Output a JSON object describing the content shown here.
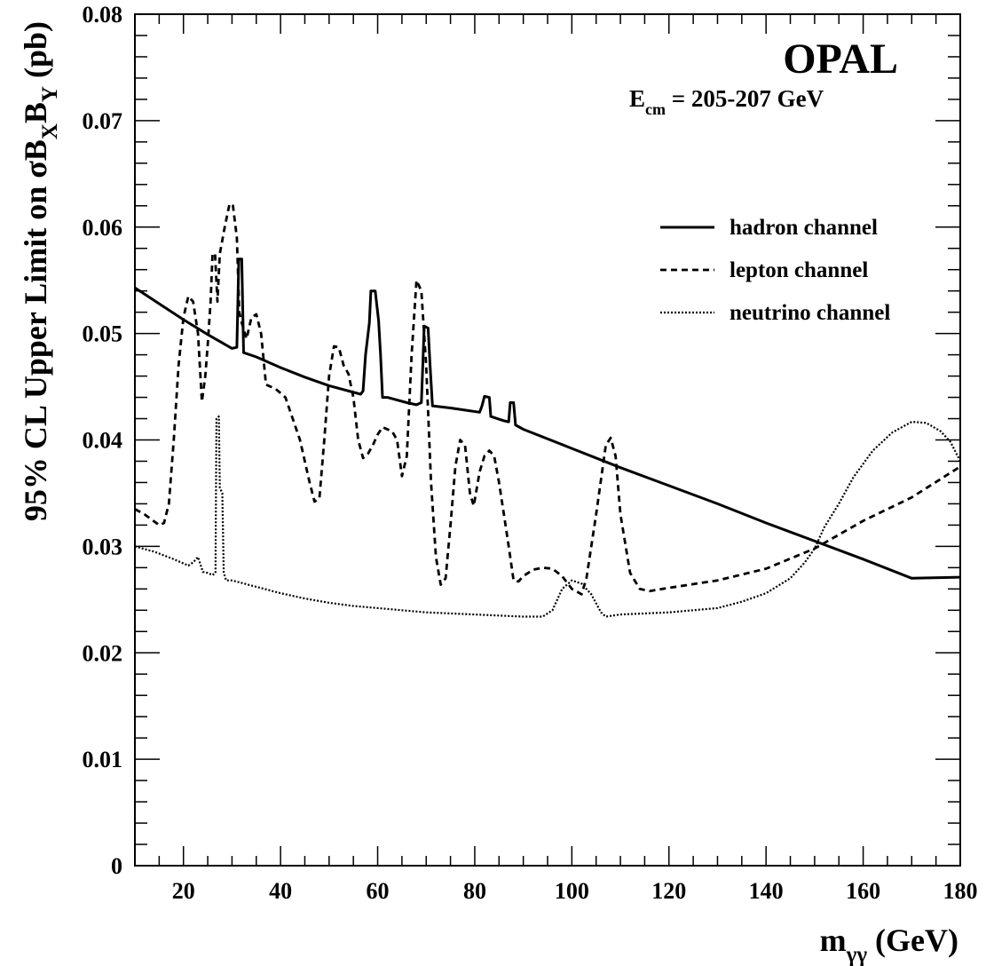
{
  "chart_data": {
    "type": "line",
    "experiment": "OPAL",
    "energy": {
      "main": "E",
      "sub": "cm",
      "rest": " = 205-207 GeV"
    },
    "xlabel": {
      "main": "m",
      "sub": "γγ",
      "rest": " (GeV)"
    },
    "ylabel": {
      "p1": "95% CL Upper Limit on σB",
      "s1": "X",
      "p2": "B",
      "s2": "Y",
      "p3": " (pb)"
    },
    "xlim": [
      10,
      180
    ],
    "ylim": [
      0,
      0.08
    ],
    "x_ticks": [
      "20",
      "40",
      "60",
      "80",
      "100",
      "120",
      "140",
      "160",
      "180"
    ],
    "y_ticks": [
      "0",
      "0.01",
      "0.02",
      "0.03",
      "0.04",
      "0.05",
      "0.06",
      "0.07",
      "0.08"
    ],
    "grid": false,
    "legend_position": "top-right",
    "series": [
      {
        "name": "hadron channel",
        "style": "solid",
        "points": [
          [
            10,
            0.0543
          ],
          [
            15,
            0.0528
          ],
          [
            20,
            0.0513
          ],
          [
            25,
            0.0499
          ],
          [
            30,
            0.0486
          ],
          [
            31,
            0.0487
          ],
          [
            31.4,
            0.057
          ],
          [
            32,
            0.057
          ],
          [
            32.4,
            0.0482
          ],
          [
            35,
            0.0478
          ],
          [
            40,
            0.0468
          ],
          [
            45,
            0.0459
          ],
          [
            50,
            0.0451
          ],
          [
            56.5,
            0.0443
          ],
          [
            57,
            0.0446
          ],
          [
            57.5,
            0.048
          ],
          [
            58.3,
            0.051
          ],
          [
            58.6,
            0.054
          ],
          [
            59.5,
            0.054
          ],
          [
            60.2,
            0.0512
          ],
          [
            60.6,
            0.048
          ],
          [
            61,
            0.044
          ],
          [
            62,
            0.044
          ],
          [
            66,
            0.0435
          ],
          [
            68,
            0.0433
          ],
          [
            69,
            0.0435
          ],
          [
            69.3,
            0.047
          ],
          [
            69.6,
            0.0507
          ],
          [
            70.4,
            0.0505
          ],
          [
            70.8,
            0.047
          ],
          [
            71.3,
            0.0432
          ],
          [
            75,
            0.043
          ],
          [
            81,
            0.0426
          ],
          [
            81.5,
            0.0432
          ],
          [
            82,
            0.0441
          ],
          [
            83,
            0.044
          ],
          [
            83.3,
            0.0422
          ],
          [
            86,
            0.0418
          ],
          [
            87,
            0.0417
          ],
          [
            87.3,
            0.0435
          ],
          [
            88,
            0.0435
          ],
          [
            88.4,
            0.0414
          ],
          [
            90,
            0.041
          ],
          [
            100,
            0.0392
          ],
          [
            110,
            0.0374
          ],
          [
            120,
            0.0357
          ],
          [
            130,
            0.034
          ],
          [
            140,
            0.0322
          ],
          [
            150,
            0.0305
          ],
          [
            160,
            0.0288
          ],
          [
            170,
            0.027
          ],
          [
            180,
            0.0271
          ]
        ]
      },
      {
        "name": "lepton channel",
        "style": "dashed",
        "points": [
          [
            10,
            0.0335
          ],
          [
            12,
            0.033
          ],
          [
            15,
            0.032
          ],
          [
            16,
            0.0322
          ],
          [
            17,
            0.034
          ],
          [
            18,
            0.04
          ],
          [
            19,
            0.047
          ],
          [
            20,
            0.0515
          ],
          [
            21,
            0.0535
          ],
          [
            22,
            0.053
          ],
          [
            23,
            0.05
          ],
          [
            23.8,
            0.0436
          ],
          [
            24.5,
            0.046
          ],
          [
            25,
            0.049
          ],
          [
            25.6,
            0.053
          ],
          [
            26,
            0.0575
          ],
          [
            26.5,
            0.0575
          ],
          [
            27,
            0.053
          ],
          [
            27.5,
            0.0575
          ],
          [
            28.5,
            0.06
          ],
          [
            29.5,
            0.0622
          ],
          [
            30.2,
            0.062
          ],
          [
            31,
            0.059
          ],
          [
            31.5,
            0.052
          ],
          [
            32,
            0.051
          ],
          [
            33,
            0.0495
          ],
          [
            34,
            0.0515
          ],
          [
            35,
            0.0518
          ],
          [
            36,
            0.05
          ],
          [
            37,
            0.0452
          ],
          [
            39,
            0.0448
          ],
          [
            41,
            0.044
          ],
          [
            42.5,
            0.042
          ],
          [
            44,
            0.04
          ],
          [
            46,
            0.036
          ],
          [
            47,
            0.0342
          ],
          [
            48,
            0.0345
          ],
          [
            49,
            0.04
          ],
          [
            50,
            0.046
          ],
          [
            51,
            0.0488
          ],
          [
            52,
            0.0487
          ],
          [
            53,
            0.047
          ],
          [
            54,
            0.0462
          ],
          [
            55,
            0.044
          ],
          [
            56,
            0.04
          ],
          [
            57,
            0.0383
          ],
          [
            58,
            0.0387
          ],
          [
            59,
            0.0395
          ],
          [
            60,
            0.0405
          ],
          [
            61,
            0.0412
          ],
          [
            63,
            0.0408
          ],
          [
            64,
            0.04
          ],
          [
            65,
            0.0366
          ],
          [
            66,
            0.0385
          ],
          [
            67,
            0.048
          ],
          [
            68,
            0.055
          ],
          [
            69,
            0.054
          ],
          [
            70,
            0.047
          ],
          [
            71,
            0.036
          ],
          [
            72,
            0.029
          ],
          [
            73,
            0.0264
          ],
          [
            74,
            0.027
          ],
          [
            75,
            0.032
          ],
          [
            76,
            0.0375
          ],
          [
            77,
            0.04
          ],
          [
            78,
            0.0395
          ],
          [
            79,
            0.035
          ],
          [
            79.8,
            0.0338
          ],
          [
            81,
            0.037
          ],
          [
            82,
            0.0385
          ],
          [
            83,
            0.039
          ],
          [
            84,
            0.0385
          ],
          [
            85,
            0.036
          ],
          [
            86,
            0.033
          ],
          [
            87,
            0.03
          ],
          [
            88,
            0.0268
          ],
          [
            89,
            0.0267
          ],
          [
            90,
            0.0272
          ],
          [
            92,
            0.0278
          ],
          [
            94,
            0.028
          ],
          [
            96,
            0.0279
          ],
          [
            98,
            0.0272
          ],
          [
            100,
            0.026
          ],
          [
            102,
            0.0255
          ],
          [
            103,
            0.027
          ],
          [
            105,
            0.033
          ],
          [
            107,
            0.0395
          ],
          [
            108,
            0.0402
          ],
          [
            109,
            0.0385
          ],
          [
            110,
            0.033
          ],
          [
            112,
            0.0275
          ],
          [
            114,
            0.026
          ],
          [
            116,
            0.0258
          ],
          [
            120,
            0.0261
          ],
          [
            130,
            0.0268
          ],
          [
            140,
            0.0279
          ],
          [
            150,
            0.0298
          ],
          [
            160,
            0.0324
          ],
          [
            170,
            0.0346
          ],
          [
            180,
            0.0375
          ]
        ]
      },
      {
        "name": "neutrino channel",
        "style": "dotted",
        "points": [
          [
            10,
            0.03
          ],
          [
            14,
            0.0295
          ],
          [
            18,
            0.0288
          ],
          [
            21,
            0.0282
          ],
          [
            22,
            0.0285
          ],
          [
            23,
            0.029
          ],
          [
            24,
            0.0276
          ],
          [
            25,
            0.0275
          ],
          [
            26,
            0.0273
          ],
          [
            26.6,
            0.0275
          ],
          [
            26.8,
            0.042
          ],
          [
            27.3,
            0.0422
          ],
          [
            27.5,
            0.0355
          ],
          [
            28,
            0.035
          ],
          [
            28.3,
            0.0275
          ],
          [
            28.8,
            0.0268
          ],
          [
            30,
            0.0268
          ],
          [
            35,
            0.0262
          ],
          [
            40,
            0.0256
          ],
          [
            45,
            0.0251
          ],
          [
            50,
            0.0247
          ],
          [
            55,
            0.0244
          ],
          [
            60,
            0.0242
          ],
          [
            65,
            0.024
          ],
          [
            70,
            0.0238
          ],
          [
            80,
            0.0236
          ],
          [
            90,
            0.0234
          ],
          [
            94,
            0.0234
          ],
          [
            96,
            0.024
          ],
          [
            98,
            0.026
          ],
          [
            100,
            0.0268
          ],
          [
            102,
            0.0265
          ],
          [
            104,
            0.0255
          ],
          [
            106,
            0.0238
          ],
          [
            107,
            0.0234
          ],
          [
            110,
            0.0236
          ],
          [
            120,
            0.0238
          ],
          [
            130,
            0.0242
          ],
          [
            135,
            0.0248
          ],
          [
            140,
            0.0256
          ],
          [
            145,
            0.027
          ],
          [
            148,
            0.0285
          ],
          [
            150,
            0.0298
          ],
          [
            152,
            0.0318
          ],
          [
            155,
            0.034
          ],
          [
            158,
            0.0365
          ],
          [
            162,
            0.039
          ],
          [
            166,
            0.0407
          ],
          [
            170,
            0.0417
          ],
          [
            173,
            0.0416
          ],
          [
            176,
            0.0408
          ],
          [
            178,
            0.0398
          ],
          [
            180,
            0.038
          ]
        ]
      }
    ]
  }
}
